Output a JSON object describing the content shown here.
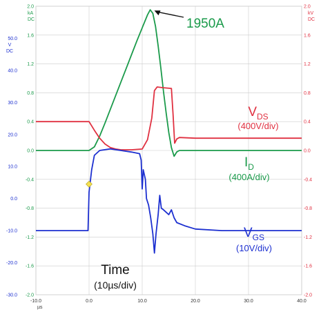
{
  "colors": {
    "drain_current": "#1a9a4a",
    "drain_source_voltage": "#e03040",
    "gate_source_voltage": "#1c2fd0",
    "grid": "#cccccc",
    "axis_text": "#333333",
    "marker": "#f5e050",
    "background": "#ffffff"
  },
  "chart_data": {
    "type": "line",
    "title": "",
    "grid": true,
    "xaxis": {
      "unit": "µs",
      "range": [
        -10,
        40
      ],
      "ticks": [
        -10,
        0,
        10,
        20,
        30,
        40
      ],
      "tick_labels": [
        "-10.0",
        "0.0",
        "10.0",
        "20.0",
        "30.0",
        "40.0"
      ]
    },
    "axes": {
      "vgs": {
        "unit_line1": "V",
        "unit_line2": "DC",
        "range": [
          -30,
          60
        ],
        "ticks": [
          -30,
          -20,
          -10,
          0,
          10,
          20,
          30,
          40,
          50
        ],
        "tick_labels": [
          "-30.0",
          "-20.0",
          "-10.0",
          "0.0",
          "10.0",
          "20.0",
          "30.0",
          "40.0",
          "50.0"
        ]
      },
      "id": {
        "unit_line1": "kA",
        "unit_line2": "DC",
        "range": [
          -2.0,
          2.0
        ],
        "ticks": [
          -2.0,
          -1.6,
          -1.2,
          -0.8,
          -0.4,
          0.0,
          0.4,
          0.8,
          1.2,
          1.6,
          2.0
        ],
        "tick_labels": [
          "-2.0",
          "-1.6",
          "-1.2",
          "-0.8",
          "-0.4",
          "0.0",
          "0.4",
          "0.8",
          "1.2",
          "1.6",
          "2.0"
        ]
      },
      "vds": {
        "unit_line1": "kV",
        "unit_line2": "DC",
        "range": [
          -2.0,
          2.0
        ],
        "ticks": [
          -2.0,
          -1.6,
          -1.2,
          -0.8,
          -0.4,
          0.0,
          0.4,
          0.8,
          1.2,
          1.6,
          2.0
        ],
        "tick_labels": [
          "-2.0",
          "-1.6",
          "-1.2",
          "-0.8",
          "-0.4",
          "0.0",
          "0.4",
          "0.8",
          "1.2",
          "1.6",
          "2.0"
        ]
      }
    },
    "series": [
      {
        "key": "id",
        "axis": "id",
        "points": [
          [
            -10,
            0.0
          ],
          [
            0,
            0.0
          ],
          [
            1,
            0.05
          ],
          [
            2,
            0.2
          ],
          [
            3,
            0.38
          ],
          [
            4,
            0.57
          ],
          [
            5,
            0.76
          ],
          [
            6,
            0.95
          ],
          [
            7,
            1.14
          ],
          [
            8,
            1.33
          ],
          [
            9,
            1.52
          ],
          [
            10,
            1.7
          ],
          [
            11,
            1.88
          ],
          [
            11.5,
            1.95
          ],
          [
            12,
            1.9
          ],
          [
            12.5,
            1.72
          ],
          [
            13,
            1.45
          ],
          [
            13.5,
            1.15
          ],
          [
            14,
            0.82
          ],
          [
            14.5,
            0.52
          ],
          [
            15,
            0.25
          ],
          [
            15.5,
            0.04
          ],
          [
            16,
            -0.08
          ],
          [
            16.5,
            -0.02
          ],
          [
            17,
            0.0
          ],
          [
            40,
            0.0
          ]
        ]
      },
      {
        "key": "vds",
        "axis": "vds",
        "points": [
          [
            -10,
            0.4
          ],
          [
            0,
            0.4
          ],
          [
            1,
            0.28
          ],
          [
            2,
            0.17
          ],
          [
            3,
            0.09
          ],
          [
            4,
            0.04
          ],
          [
            5,
            0.02
          ],
          [
            6,
            0.01
          ],
          [
            8,
            0.01
          ],
          [
            10,
            0.02
          ],
          [
            11,
            0.15
          ],
          [
            11.8,
            0.45
          ],
          [
            12.3,
            0.83
          ],
          [
            12.8,
            0.88
          ],
          [
            14,
            0.87
          ],
          [
            15.5,
            0.86
          ],
          [
            15.8,
            0.5
          ],
          [
            16.1,
            0.1
          ],
          [
            16.5,
            0.16
          ],
          [
            17,
            0.18
          ],
          [
            20,
            0.17
          ],
          [
            40,
            0.17
          ]
        ]
      },
      {
        "key": "vgs",
        "axis": "vgs",
        "points": [
          [
            -10,
            -10
          ],
          [
            -0.2,
            -10
          ],
          [
            0,
            2
          ],
          [
            0.5,
            9
          ],
          [
            1,
            13.5
          ],
          [
            2,
            15
          ],
          [
            4,
            15.5
          ],
          [
            6,
            15
          ],
          [
            8,
            14.5
          ],
          [
            9.5,
            14
          ],
          [
            9.8,
            12
          ],
          [
            10,
            3
          ],
          [
            10.2,
            9
          ],
          [
            10.6,
            6
          ],
          [
            10.8,
            0
          ],
          [
            11.2,
            -2
          ],
          [
            11.6,
            -6
          ],
          [
            12,
            -11
          ],
          [
            12.3,
            -17
          ],
          [
            12.6,
            -11
          ],
          [
            13,
            -5
          ],
          [
            13.3,
            1
          ],
          [
            13.6,
            -3
          ],
          [
            14,
            -3.5
          ],
          [
            15,
            -5
          ],
          [
            15.5,
            -3.5
          ],
          [
            16,
            -6
          ],
          [
            16.5,
            -7.5
          ],
          [
            18,
            -8.5
          ],
          [
            20,
            -9.5
          ],
          [
            25,
            -10
          ],
          [
            40,
            -10
          ]
        ]
      }
    ],
    "annotations": {
      "peak_label": "1950A",
      "peak_point": [
        11.5,
        1.95
      ],
      "trigger_point": [
        0,
        4.5
      ],
      "vds": {
        "main": "V",
        "sub": "DS",
        "scale": "(400V/div)"
      },
      "id": {
        "main": "I",
        "sub": "D",
        "scale": "(400A/div)"
      },
      "vgs": {
        "main": "V",
        "sub": "GS",
        "scale": "(10V/div)"
      },
      "time": {
        "title": "Time",
        "scale": "(10µs/div)"
      }
    }
  }
}
